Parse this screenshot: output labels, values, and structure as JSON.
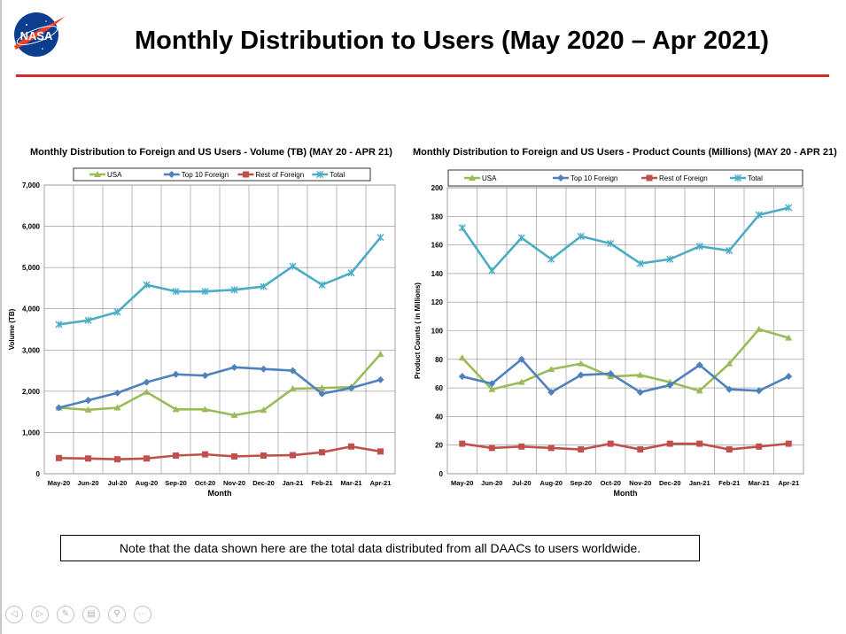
{
  "slide": {
    "title": "Monthly Distribution to Users (May 2020 – Apr 2021)",
    "logo_text": "NASA",
    "note": "Note that the data shown here are the total data distributed from all DAACs to users worldwide."
  },
  "colors": {
    "title_rule": "#d92b2b",
    "usa": "#9bbb59",
    "top10": "#4f81bd",
    "rest": "#c0504d",
    "total": "#4bacc6"
  },
  "controls": [
    "prev-icon",
    "next-icon",
    "pen-icon",
    "slides-icon",
    "zoom-icon",
    "more-icon"
  ],
  "chart_data": [
    {
      "type": "line",
      "title": "Monthly Distribution to Foreign and US Users - Volume  (TB) (MAY 20 - APR 21)",
      "xlabel": "Month",
      "ylabel": "Volume (TB)",
      "ylim": [
        0,
        7000
      ],
      "yticks": [
        0,
        1000,
        2000,
        3000,
        4000,
        5000,
        6000,
        7000
      ],
      "ytick_labels": [
        "0",
        "1,000",
        "2,000",
        "3,000",
        "4,000",
        "5,000",
        "6,000",
        "7,000"
      ],
      "grid": true,
      "legend_position": "top",
      "categories": [
        "May-20",
        "Jun-20",
        "Jul-20",
        "Aug-20",
        "Sep-20",
        "Oct-20",
        "Nov-20",
        "Dec-20",
        "Jan-21",
        "Feb-21",
        "Mar-21",
        "Apr-21"
      ],
      "series": [
        {
          "name": "USA",
          "color": "#9bbb59",
          "marker": "triangle",
          "values": [
            1600,
            1550,
            1600,
            1980,
            1560,
            1560,
            1420,
            1540,
            2060,
            2080,
            2100,
            2900
          ]
        },
        {
          "name": "Top 10 Foreign",
          "color": "#4f81bd",
          "marker": "diamond",
          "values": [
            1600,
            1780,
            1960,
            2220,
            2410,
            2380,
            2580,
            2540,
            2500,
            1940,
            2080,
            2280
          ]
        },
        {
          "name": "Rest of Foreign",
          "color": "#c0504d",
          "marker": "square",
          "values": [
            380,
            370,
            350,
            370,
            440,
            470,
            420,
            440,
            450,
            520,
            660,
            540
          ]
        },
        {
          "name": "Total",
          "color": "#4bacc6",
          "marker": "x",
          "values": [
            3620,
            3720,
            3920,
            4580,
            4420,
            4420,
            4460,
            4540,
            5030,
            4580,
            4870,
            5730
          ]
        }
      ]
    },
    {
      "type": "line",
      "title": "Monthly Distribution to Foreign and US Users - Product Counts (Millions) (MAY 20 - APR 21)",
      "xlabel": "Month",
      "ylabel": "Product Counts ( in Millions)",
      "ylim": [
        0,
        200
      ],
      "yticks": [
        0,
        20,
        40,
        60,
        80,
        100,
        120,
        140,
        160,
        180,
        200
      ],
      "ytick_labels": [
        "0",
        "20",
        "40",
        "60",
        "80",
        "100",
        "120",
        "140",
        "160",
        "180",
        "200"
      ],
      "grid": true,
      "legend_position": "top",
      "categories": [
        "May-20",
        "Jun-20",
        "Jul-20",
        "Aug-20",
        "Sep-20",
        "Oct-20",
        "Nov-20",
        "Dec-20",
        "Jan-21",
        "Feb-21",
        "Mar-21",
        "Apr-21"
      ],
      "series": [
        {
          "name": "USA",
          "color": "#9bbb59",
          "marker": "triangle",
          "values": [
            81,
            59,
            64,
            73,
            77,
            68,
            69,
            64,
            58,
            77,
            101,
            95
          ]
        },
        {
          "name": "Top 10 Foreign",
          "color": "#4f81bd",
          "marker": "diamond",
          "values": [
            68,
            63,
            80,
            57,
            69,
            70,
            57,
            62,
            76,
            59,
            58,
            68
          ]
        },
        {
          "name": "Rest of Foreign",
          "color": "#c0504d",
          "marker": "square",
          "values": [
            21,
            18,
            19,
            18,
            17,
            21,
            17,
            21,
            21,
            17,
            19,
            21
          ]
        },
        {
          "name": "Total",
          "color": "#4bacc6",
          "marker": "x",
          "values": [
            172,
            142,
            165,
            150,
            166,
            161,
            147,
            150,
            159,
            156,
            181,
            186
          ]
        }
      ]
    }
  ]
}
